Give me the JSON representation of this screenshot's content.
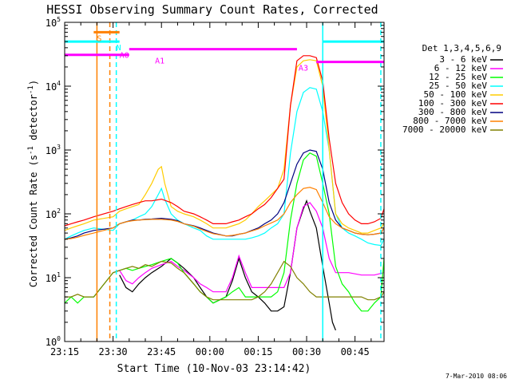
{
  "chart_data": {
    "type": "line",
    "title": "HESSI Observing Summary Count Rates, Corrected",
    "xlabel": "Start Time (10-Nov-03 23:14:42)",
    "ylabel_main": "Corrected Count Rate (s",
    "ylabel_sup1": "-1",
    "ylabel_mid": " detector",
    "ylabel_sup2": "-1",
    "ylabel_end": ")",
    "footer": "7-Mar-2010 08:06",
    "x_unit": "minutes after 23:15",
    "xlim": [
      0,
      99
    ],
    "ylim": [
      1,
      100000
    ],
    "yscale": "log",
    "grid": false,
    "x_ticks": [
      {
        "t": 0,
        "label": "23:15"
      },
      {
        "t": 15,
        "label": "23:30"
      },
      {
        "t": 30,
        "label": "23:45"
      },
      {
        "t": 45,
        "label": "00:00"
      },
      {
        "t": 60,
        "label": "00:15"
      },
      {
        "t": 75,
        "label": "00:30"
      },
      {
        "t": 90,
        "label": "00:45"
      }
    ],
    "y_ticks": [
      {
        "v": 1,
        "base": "10",
        "exp": "0"
      },
      {
        "v": 10,
        "base": "10",
        "exp": "1"
      },
      {
        "v": 100,
        "base": "10",
        "exp": "2"
      },
      {
        "v": 1000,
        "base": "10",
        "exp": "3"
      },
      {
        "v": 10000,
        "base": "10",
        "exp": "4"
      },
      {
        "v": 100000,
        "base": "10",
        "exp": "5"
      }
    ],
    "legend_title": "Det 1,3,4,5,6,9",
    "legend_position": "right",
    "series": [
      {
        "name": "3 - 6 keV",
        "color": "#000000",
        "x": [
          0,
          9,
          13,
          15,
          17,
          19,
          21,
          23,
          25,
          27,
          30,
          33,
          35,
          37,
          40,
          42,
          44,
          46,
          50,
          52,
          54,
          56,
          58,
          60,
          62,
          64,
          66,
          68,
          70,
          72,
          74,
          75,
          76,
          78,
          80,
          82,
          83,
          84
        ],
        "y": [
          null,
          null,
          null,
          null,
          11,
          7,
          6,
          8,
          10,
          12,
          15,
          20,
          17,
          14,
          10,
          7,
          5,
          4,
          5,
          9,
          20,
          10,
          6,
          5,
          4,
          3,
          3,
          3.5,
          12,
          60,
          120,
          160,
          110,
          60,
          15,
          4,
          2,
          1.5
        ]
      },
      {
        "name": "6 - 12 keV",
        "color": "#ff00ff",
        "x": [
          15,
          17,
          19,
          21,
          23,
          25,
          27,
          30,
          33,
          35,
          37,
          40,
          42,
          44,
          46,
          50,
          52,
          54,
          56,
          58,
          60,
          62,
          64,
          66,
          68,
          70,
          72,
          74,
          76,
          78,
          80,
          82,
          84,
          88,
          92,
          96,
          99
        ],
        "y": [
          12,
          13,
          9,
          8,
          10,
          12,
          14,
          16,
          18,
          15,
          13,
          10,
          8,
          7,
          6,
          6,
          10,
          22,
          12,
          7,
          7,
          7,
          7,
          7,
          7,
          12,
          60,
          130,
          150,
          110,
          60,
          20,
          12,
          12,
          11,
          11,
          12
        ]
      },
      {
        "name": "12 - 25 keV",
        "color": "#00ff00",
        "x": [
          0,
          2,
          4,
          6,
          9,
          15,
          17,
          19,
          21,
          23,
          25,
          27,
          30,
          33,
          35,
          37,
          40,
          42,
          44,
          46,
          50,
          52,
          54,
          56,
          58,
          60,
          62,
          64,
          66,
          68,
          70,
          72,
          74,
          76,
          78,
          80,
          82,
          84,
          86,
          88,
          90,
          92,
          94,
          96,
          98,
          99
        ],
        "y": [
          4,
          5,
          4,
          5,
          5,
          12,
          13,
          14,
          13,
          14,
          15,
          16,
          18,
          20,
          17,
          12,
          8,
          6,
          5,
          4,
          5,
          6,
          7,
          5,
          5,
          5,
          5,
          5,
          6,
          12,
          80,
          300,
          700,
          900,
          800,
          300,
          100,
          15,
          8,
          6,
          4,
          3,
          3,
          4,
          5,
          20
        ]
      },
      {
        "name": "25 - 50 keV",
        "color": "#00ffff",
        "x": [
          0,
          2,
          4,
          6,
          9,
          15,
          17,
          19,
          21,
          23,
          25,
          27,
          29,
          30,
          31,
          33,
          35,
          37,
          40,
          42,
          44,
          46,
          50,
          52,
          54,
          56,
          58,
          60,
          62,
          64,
          66,
          68,
          70,
          72,
          74,
          76,
          78,
          80,
          82,
          84,
          86,
          88,
          90,
          92,
          94,
          96,
          98,
          99
        ],
        "y": [
          40,
          45,
          50,
          55,
          60,
          55,
          70,
          75,
          80,
          90,
          100,
          130,
          200,
          250,
          170,
          100,
          80,
          70,
          60,
          55,
          45,
          40,
          40,
          40,
          40,
          40,
          42,
          45,
          50,
          60,
          70,
          100,
          900,
          4000,
          8000,
          9500,
          9000,
          4000,
          1000,
          100,
          60,
          50,
          45,
          40,
          35,
          33,
          32,
          40
        ]
      },
      {
        "name": "50 - 100 keV",
        "color": "#ffcc00",
        "x": [
          0,
          2,
          4,
          6,
          9,
          15,
          17,
          19,
          21,
          23,
          25,
          27,
          29,
          30,
          31,
          33,
          35,
          37,
          40,
          42,
          44,
          46,
          50,
          52,
          54,
          56,
          58,
          60,
          62,
          64,
          66,
          68,
          70,
          72,
          74,
          76,
          78,
          80,
          82,
          84,
          86,
          88,
          90,
          92,
          94,
          96,
          98,
          99
        ],
        "y": [
          55,
          60,
          65,
          70,
          80,
          90,
          110,
          120,
          130,
          140,
          200,
          300,
          500,
          550,
          300,
          130,
          110,
          100,
          90,
          80,
          70,
          60,
          60,
          65,
          70,
          80,
          100,
          130,
          160,
          200,
          250,
          500,
          5000,
          20000,
          25000,
          26000,
          25000,
          10000,
          1000,
          100,
          70,
          60,
          55,
          50,
          50,
          55,
          60,
          70
        ]
      },
      {
        "name": "100 - 300 keV",
        "color": "#ff0000",
        "x": [
          0,
          2,
          4,
          6,
          9,
          15,
          17,
          19,
          21,
          23,
          25,
          27,
          30,
          33,
          35,
          37,
          40,
          42,
          44,
          46,
          50,
          52,
          54,
          56,
          58,
          60,
          62,
          64,
          66,
          68,
          70,
          72,
          74,
          76,
          78,
          80,
          82,
          84,
          86,
          88,
          90,
          92,
          94,
          96,
          98,
          99
        ],
        "y": [
          65,
          70,
          75,
          80,
          90,
          110,
          120,
          130,
          140,
          150,
          160,
          160,
          170,
          150,
          130,
          110,
          100,
          90,
          80,
          70,
          70,
          75,
          80,
          90,
          100,
          120,
          140,
          180,
          250,
          350,
          5000,
          25000,
          30000,
          30000,
          28000,
          12000,
          1500,
          300,
          150,
          100,
          80,
          70,
          70,
          75,
          85,
          120
        ]
      },
      {
        "name": "300 - 800 keV",
        "color": "#000080",
        "x": [
          0,
          2,
          4,
          6,
          9,
          15,
          17,
          19,
          21,
          23,
          25,
          27,
          30,
          33,
          35,
          37,
          40,
          42,
          44,
          46,
          50,
          52,
          54,
          56,
          58,
          60,
          62,
          64,
          66,
          68,
          70,
          72,
          74,
          76,
          78,
          80,
          82,
          84,
          86,
          88,
          90,
          92,
          94,
          96,
          98,
          99
        ],
        "y": [
          40,
          42,
          45,
          50,
          55,
          60,
          70,
          75,
          80,
          80,
          82,
          83,
          85,
          82,
          78,
          70,
          65,
          60,
          55,
          50,
          45,
          45,
          48,
          50,
          55,
          60,
          70,
          80,
          100,
          150,
          300,
          600,
          900,
          1000,
          950,
          500,
          150,
          80,
          60,
          55,
          50,
          48,
          47,
          48,
          50,
          60
        ]
      },
      {
        "name": "800 - 7000 keV",
        "color": "#ff8000",
        "x": [
          0,
          2,
          4,
          6,
          9,
          15,
          17,
          19,
          21,
          23,
          25,
          27,
          30,
          33,
          35,
          37,
          40,
          42,
          44,
          46,
          50,
          52,
          54,
          56,
          58,
          60,
          62,
          64,
          66,
          68,
          70,
          72,
          74,
          76,
          78,
          80,
          82,
          84,
          86,
          88,
          90,
          92,
          94,
          96,
          98,
          99
        ],
        "y": [
          40,
          41,
          43,
          46,
          50,
          60,
          70,
          75,
          78,
          80,
          81,
          82,
          82,
          80,
          76,
          70,
          64,
          58,
          53,
          49,
          45,
          46,
          48,
          50,
          54,
          58,
          65,
          72,
          80,
          100,
          150,
          200,
          250,
          260,
          240,
          150,
          90,
          70,
          60,
          55,
          50,
          48,
          47,
          48,
          50,
          60
        ]
      },
      {
        "name": "7000 - 20000 keV",
        "color": "#808000",
        "x": [
          0,
          2,
          4,
          6,
          9,
          15,
          17,
          19,
          21,
          23,
          25,
          27,
          30,
          33,
          35,
          37,
          40,
          42,
          44,
          46,
          50,
          52,
          54,
          56,
          58,
          60,
          62,
          64,
          66,
          68,
          70,
          72,
          74,
          76,
          78,
          80,
          82,
          84,
          86,
          88,
          90,
          92,
          94,
          96,
          98,
          99
        ],
        "y": [
          5,
          5,
          5.5,
          5,
          5,
          12,
          13,
          14,
          15,
          14,
          16,
          15,
          18,
          17,
          14,
          12,
          8,
          6,
          5,
          4.5,
          4.5,
          4.5,
          4.5,
          4.5,
          4.5,
          5,
          6,
          8,
          12,
          18,
          15,
          10,
          8,
          6,
          5,
          5,
          5,
          5,
          5,
          5,
          5,
          5,
          4.5,
          4.5,
          5,
          6
        ]
      }
    ],
    "attenuator_bars": [
      {
        "label": "S",
        "color": "#ff8000",
        "t0": 9,
        "t1": 17,
        "y": 70000
      },
      {
        "label": "N",
        "color": "#00ffff",
        "t0": 0,
        "t1": 17,
        "y": 50000
      },
      {
        "label": "N",
        "color": "#00ffff",
        "t0": 80,
        "t1": 99,
        "y": 50000
      },
      {
        "label": "A0",
        "color": "#ff00ff",
        "t0": 20,
        "t1": 72,
        "y": 38000
      },
      {
        "label": "A1",
        "color": "#ff00ff",
        "t0": 0,
        "t1": 20,
        "y": 31000
      },
      {
        "label": "A3",
        "color": "#ff00ff",
        "t0": 78,
        "t1": 99,
        "y": 24000
      }
    ],
    "bar_labels": [
      {
        "text": "S",
        "color": "#ff8000",
        "t": 10,
        "y": 70000
      },
      {
        "text": "N",
        "color": "#00ffff",
        "t": 16,
        "y": 50000
      },
      {
        "text": "A0",
        "color": "#ff00ff",
        "t": 17,
        "y": 38000
      },
      {
        "text": "A1",
        "color": "#ff00ff",
        "t": 28,
        "y": 31000
      },
      {
        "text": "A3",
        "color": "#ff00ff",
        "t": 72.5,
        "y": 24000
      }
    ],
    "vlines": [
      {
        "t": 10,
        "color": "#ff8000",
        "dash": false
      },
      {
        "t": 14,
        "color": "#ff8000",
        "dash": true
      },
      {
        "t": 16,
        "color": "#00ffff",
        "dash": true
      },
      {
        "t": 80,
        "color": "#00ffff",
        "dash": false
      },
      {
        "t": 98,
        "color": "#00ffff",
        "dash": true
      }
    ]
  }
}
